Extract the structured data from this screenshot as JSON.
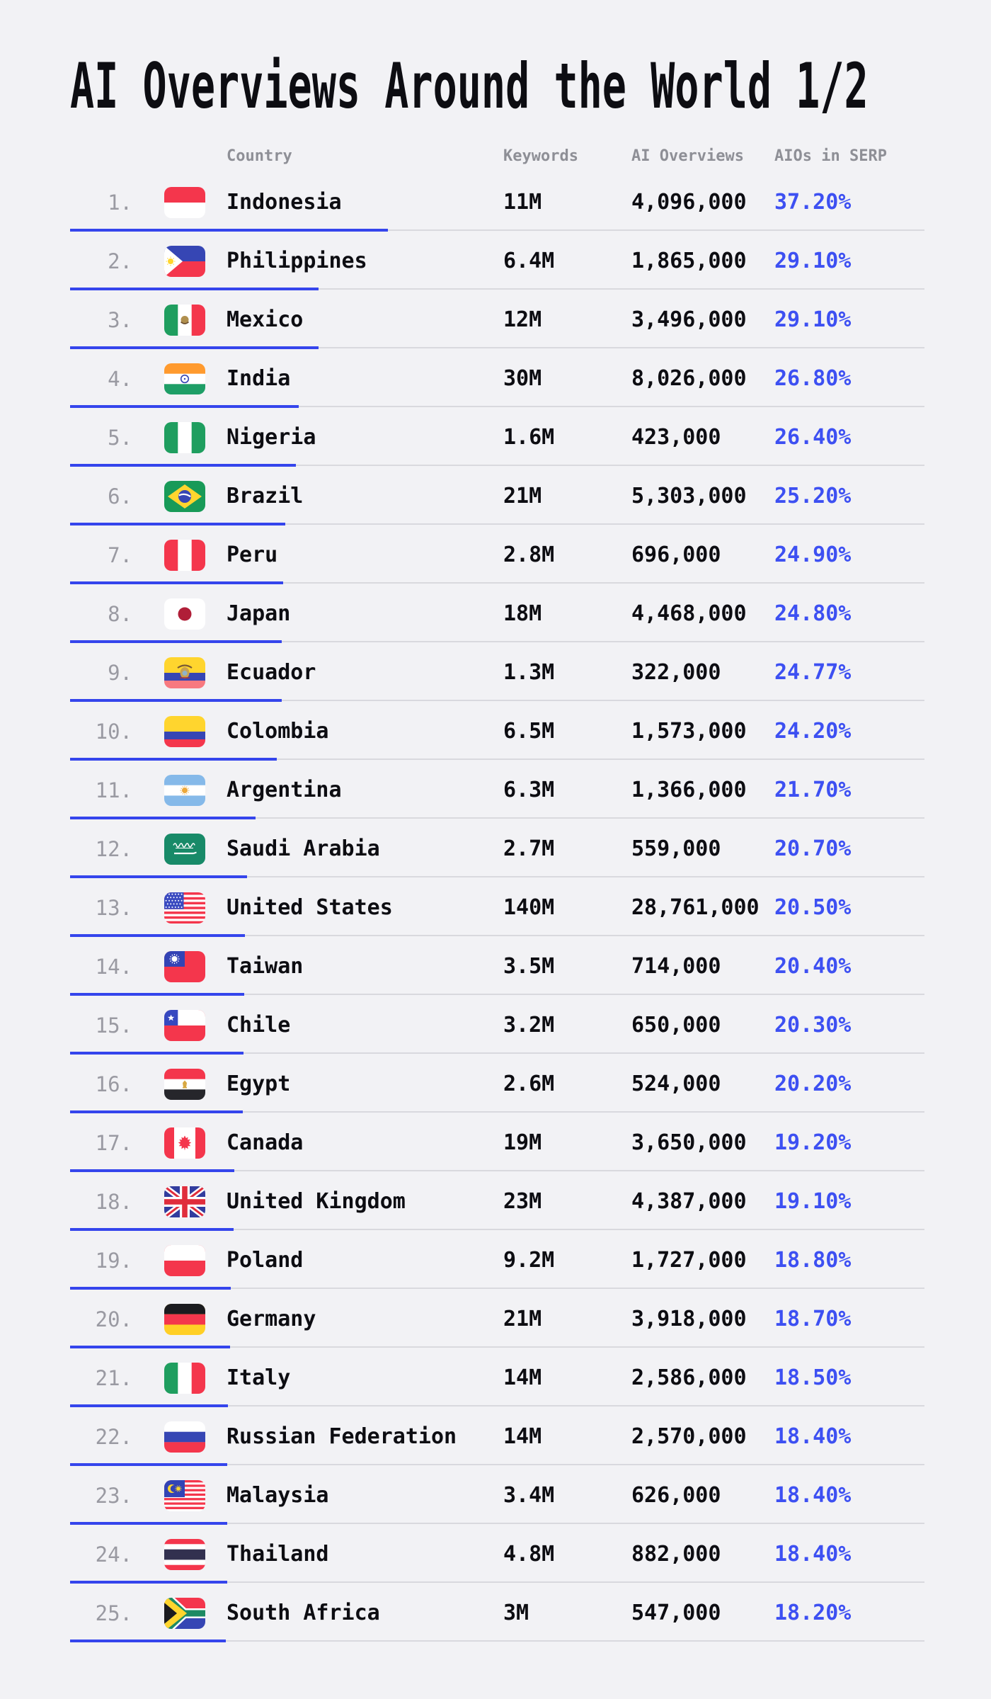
{
  "page": {
    "title": "AI Overviews Around the World 1/2"
  },
  "colors": {
    "background": "#f2f2f5",
    "ink": "#0d0d12",
    "muted_header": "#8e8f96",
    "rank_gray": "#9a9aa2",
    "accent_text": "#3d50f2",
    "accent_bar": "#3545ec",
    "track_gray": "#d9d9de"
  },
  "table": {
    "columns": {
      "country": "Country",
      "keywords": "Keywords",
      "ai_overviews": "AI Overviews",
      "aios_in_serp": "AIOs in SERP"
    },
    "rows": [
      {
        "rank": "1.",
        "flag": "indonesia",
        "country": "Indonesia",
        "keywords": "11M",
        "ai_overviews": "4,096,000",
        "aios_in_serp": "37.20%",
        "bar_percent": 37.2
      },
      {
        "rank": "2.",
        "flag": "philippines",
        "country": "Philippines",
        "keywords": "6.4M",
        "ai_overviews": "1,865,000",
        "aios_in_serp": "29.10%",
        "bar_percent": 29.1
      },
      {
        "rank": "3.",
        "flag": "mexico",
        "country": "Mexico",
        "keywords": "12M",
        "ai_overviews": "3,496,000",
        "aios_in_serp": "29.10%",
        "bar_percent": 29.1
      },
      {
        "rank": "4.",
        "flag": "india",
        "country": "India",
        "keywords": "30M",
        "ai_overviews": "8,026,000",
        "aios_in_serp": "26.80%",
        "bar_percent": 26.8
      },
      {
        "rank": "5.",
        "flag": "nigeria",
        "country": "Nigeria",
        "keywords": "1.6M",
        "ai_overviews": "423,000",
        "aios_in_serp": "26.40%",
        "bar_percent": 26.4
      },
      {
        "rank": "6.",
        "flag": "brazil",
        "country": "Brazil",
        "keywords": "21M",
        "ai_overviews": "5,303,000",
        "aios_in_serp": "25.20%",
        "bar_percent": 25.2
      },
      {
        "rank": "7.",
        "flag": "peru",
        "country": "Peru",
        "keywords": "2.8M",
        "ai_overviews": "696,000",
        "aios_in_serp": "24.90%",
        "bar_percent": 24.9
      },
      {
        "rank": "8.",
        "flag": "japan",
        "country": "Japan",
        "keywords": "18M",
        "ai_overviews": "4,468,000",
        "aios_in_serp": "24.80%",
        "bar_percent": 24.8
      },
      {
        "rank": "9.",
        "flag": "ecuador",
        "country": "Ecuador",
        "keywords": "1.3M",
        "ai_overviews": "322,000",
        "aios_in_serp": "24.77%",
        "bar_percent": 24.77
      },
      {
        "rank": "10.",
        "flag": "colombia",
        "country": "Colombia",
        "keywords": "6.5M",
        "ai_overviews": "1,573,000",
        "aios_in_serp": "24.20%",
        "bar_percent": 24.2
      },
      {
        "rank": "11.",
        "flag": "argentina",
        "country": "Argentina",
        "keywords": "6.3M",
        "ai_overviews": "1,366,000",
        "aios_in_serp": "21.70%",
        "bar_percent": 21.7
      },
      {
        "rank": "12.",
        "flag": "saudi-arabia",
        "country": "Saudi Arabia",
        "keywords": "2.7M",
        "ai_overviews": "559,000",
        "aios_in_serp": "20.70%",
        "bar_percent": 20.7
      },
      {
        "rank": "13.",
        "flag": "united-states",
        "country": "United States",
        "keywords": "140M",
        "ai_overviews": "28,761,000",
        "aios_in_serp": "20.50%",
        "bar_percent": 20.5
      },
      {
        "rank": "14.",
        "flag": "taiwan",
        "country": "Taiwan",
        "keywords": "3.5M",
        "ai_overviews": "714,000",
        "aios_in_serp": "20.40%",
        "bar_percent": 20.4
      },
      {
        "rank": "15.",
        "flag": "chile",
        "country": "Chile",
        "keywords": "3.2M",
        "ai_overviews": "650,000",
        "aios_in_serp": "20.30%",
        "bar_percent": 20.3
      },
      {
        "rank": "16.",
        "flag": "egypt",
        "country": "Egypt",
        "keywords": "2.6M",
        "ai_overviews": "524,000",
        "aios_in_serp": "20.20%",
        "bar_percent": 20.2
      },
      {
        "rank": "17.",
        "flag": "canada",
        "country": "Canada",
        "keywords": "19M",
        "ai_overviews": "3,650,000",
        "aios_in_serp": "19.20%",
        "bar_percent": 19.2
      },
      {
        "rank": "18.",
        "flag": "united-kingdom",
        "country": "United Kingdom",
        "keywords": "23M",
        "ai_overviews": "4,387,000",
        "aios_in_serp": "19.10%",
        "bar_percent": 19.1
      },
      {
        "rank": "19.",
        "flag": "poland",
        "country": "Poland",
        "keywords": "9.2M",
        "ai_overviews": "1,727,000",
        "aios_in_serp": "18.80%",
        "bar_percent": 18.8
      },
      {
        "rank": "20.",
        "flag": "germany",
        "country": "Germany",
        "keywords": "21M",
        "ai_overviews": "3,918,000",
        "aios_in_serp": "18.70%",
        "bar_percent": 18.7
      },
      {
        "rank": "21.",
        "flag": "italy",
        "country": "Italy",
        "keywords": "14M",
        "ai_overviews": "2,586,000",
        "aios_in_serp": "18.50%",
        "bar_percent": 18.5
      },
      {
        "rank": "22.",
        "flag": "russia",
        "country": "Russian Federation",
        "keywords": "14M",
        "ai_overviews": "2,570,000",
        "aios_in_serp": "18.40%",
        "bar_percent": 18.4
      },
      {
        "rank": "23.",
        "flag": "malaysia",
        "country": "Malaysia",
        "keywords": "3.4M",
        "ai_overviews": "626,000",
        "aios_in_serp": "18.40%",
        "bar_percent": 18.4
      },
      {
        "rank": "24.",
        "flag": "thailand",
        "country": "Thailand",
        "keywords": "4.8M",
        "ai_overviews": "882,000",
        "aios_in_serp": "18.40%",
        "bar_percent": 18.4
      },
      {
        "rank": "25.",
        "flag": "south-africa",
        "country": "South Africa",
        "keywords": "3M",
        "ai_overviews": "547,000",
        "aios_in_serp": "18.20%",
        "bar_percent": 18.2
      }
    ]
  },
  "chart_data": {
    "type": "bar",
    "title": "AI Overviews Around the World 1/2",
    "categories": [
      "Indonesia",
      "Philippines",
      "Mexico",
      "India",
      "Nigeria",
      "Brazil",
      "Peru",
      "Japan",
      "Ecuador",
      "Colombia",
      "Argentina",
      "Saudi Arabia",
      "United States",
      "Taiwan",
      "Chile",
      "Egypt",
      "Canada",
      "United Kingdom",
      "Poland",
      "Germany",
      "Italy",
      "Russian Federation",
      "Malaysia",
      "Thailand",
      "South Africa"
    ],
    "series": [
      {
        "name": "Keywords",
        "values": [
          "11M",
          "6.4M",
          "12M",
          "30M",
          "1.6M",
          "21M",
          "2.8M",
          "18M",
          "1.3M",
          "6.5M",
          "6.3M",
          "2.7M",
          "140M",
          "3.5M",
          "3.2M",
          "2.6M",
          "19M",
          "23M",
          "9.2M",
          "21M",
          "14M",
          "14M",
          "3.4M",
          "4.8M",
          "3M"
        ]
      },
      {
        "name": "AI Overviews",
        "values": [
          4096000,
          1865000,
          3496000,
          8026000,
          423000,
          5303000,
          696000,
          4468000,
          322000,
          1573000,
          1366000,
          559000,
          28761000,
          714000,
          650000,
          524000,
          3650000,
          4387000,
          1727000,
          3918000,
          2586000,
          2570000,
          626000,
          882000,
          547000
        ]
      },
      {
        "name": "AIOs in SERP (%)",
        "values": [
          37.2,
          29.1,
          29.1,
          26.8,
          26.4,
          25.2,
          24.9,
          24.8,
          24.77,
          24.2,
          21.7,
          20.7,
          20.5,
          20.4,
          20.3,
          20.2,
          19.2,
          19.1,
          18.8,
          18.7,
          18.5,
          18.4,
          18.4,
          18.4,
          18.2
        ]
      }
    ],
    "xlabel": "Country",
    "ylabel": "AIOs in SERP",
    "ylim": [
      0,
      100
    ],
    "legend_position": "none",
    "grid": false,
    "note": "Blue underline bar under each row encodes AIOs in SERP % of full row width"
  }
}
